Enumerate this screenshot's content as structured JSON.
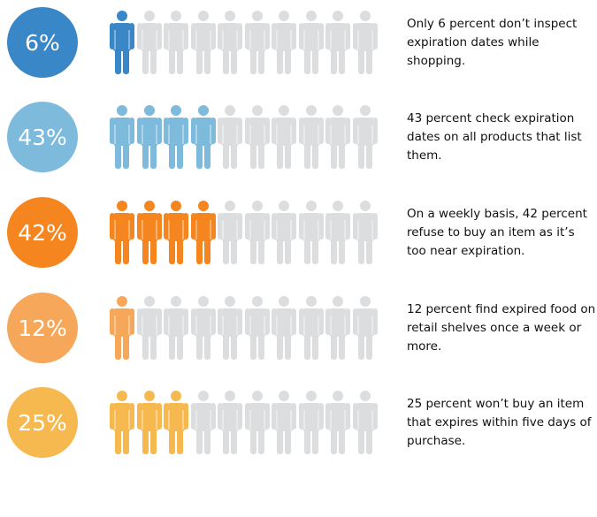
{
  "colors": {
    "inactive": "#dcdddf"
  },
  "chart_data": {
    "type": "pictogram",
    "icons_per_row": 10,
    "rows": [
      {
        "label": "6%",
        "value": 6,
        "filled_icons": 1,
        "color": "#3a87c8",
        "text": "Only 6 percent don’t inspect expiration dates while shopping."
      },
      {
        "label": "43%",
        "value": 43,
        "filled_icons": 4,
        "color": "#7dbadb",
        "text": "43 percent check expiration dates on all products that list them."
      },
      {
        "label": "42%",
        "value": 42,
        "filled_icons": 4,
        "color": "#f5861f",
        "text": "On a weekly basis, 42 percent refuse to buy an item as it’s too near expiration."
      },
      {
        "label": "12%",
        "value": 12,
        "filled_icons": 1,
        "color": "#f6a75a",
        "text": "12 percent find expired food on retail shelves once a week or more."
      },
      {
        "label": "25%",
        "value": 25,
        "filled_icons": 3,
        "color": "#f6b94f",
        "text": "25 percent won’t buy an item that expires within five days of purchase."
      }
    ]
  }
}
